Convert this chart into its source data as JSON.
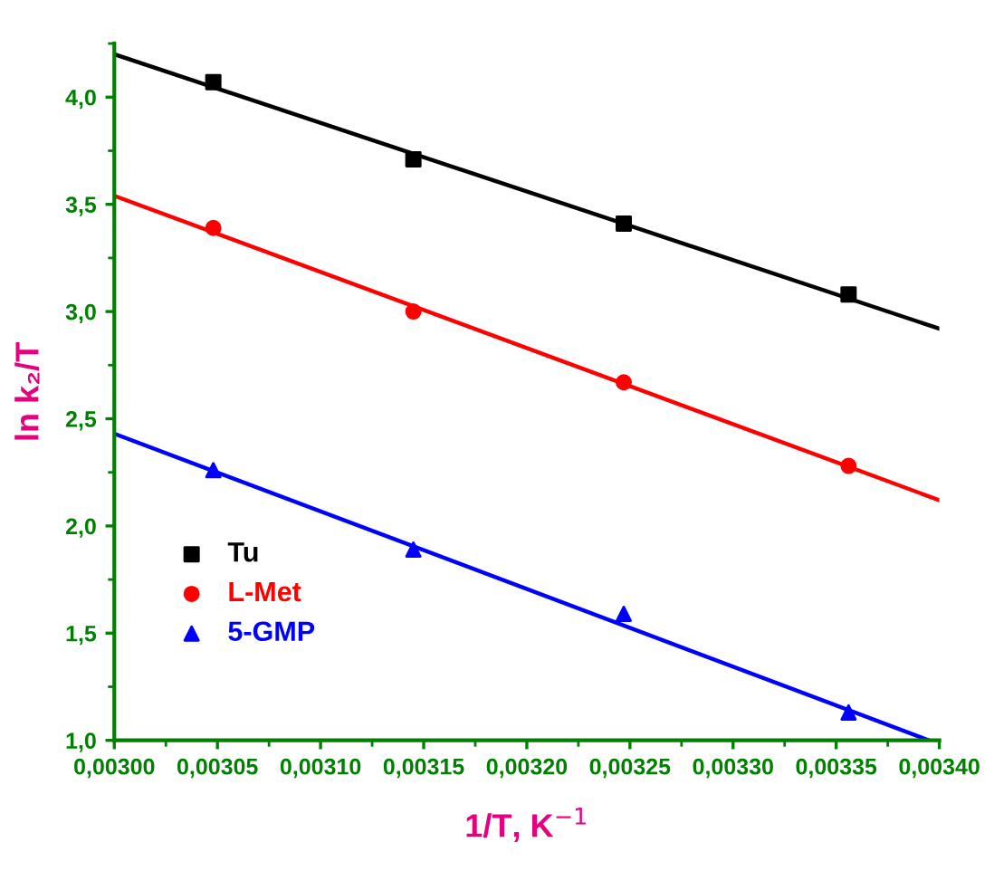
{
  "chart_data": {
    "type": "scatter",
    "xlabel": "1/T, K$^{−1}$",
    "ylabel": "ln k₂/T",
    "xlim": [
      0.003,
      0.0034
    ],
    "ylim": [
      1.0,
      4.25
    ],
    "xticks": [
      {
        "value": 0.003,
        "label": "0,00300"
      },
      {
        "value": 0.00305,
        "label": "0,00305"
      },
      {
        "value": 0.0031,
        "label": "0,00310"
      },
      {
        "value": 0.00315,
        "label": "0,00315"
      },
      {
        "value": 0.0032,
        "label": "0,00320"
      },
      {
        "value": 0.00325,
        "label": "0,00325"
      },
      {
        "value": 0.0033,
        "label": "0,00330"
      },
      {
        "value": 0.00335,
        "label": "0,00335"
      },
      {
        "value": 0.0034,
        "label": "0,00340"
      }
    ],
    "yticks": [
      {
        "value": 1.0,
        "label": "1,0"
      },
      {
        "value": 1.5,
        "label": "1,5"
      },
      {
        "value": 2.0,
        "label": "2,0"
      },
      {
        "value": 2.5,
        "label": "2,5"
      },
      {
        "value": 3.0,
        "label": "3,0"
      },
      {
        "value": 3.5,
        "label": "3,5"
      },
      {
        "value": 4.0,
        "label": "4,0"
      }
    ],
    "grid": false,
    "legend": "left",
    "series": [
      {
        "name": "Tu",
        "color": "#000000",
        "marker": "square",
        "x": [
          0.003048,
          0.003145,
          0.003247,
          0.003356
        ],
        "values": [
          4.07,
          3.71,
          3.41,
          3.08
        ]
      },
      {
        "name": "L-Met",
        "color": "#ff0000",
        "marker": "circle",
        "x": [
          0.003048,
          0.003145,
          0.003247,
          0.003356
        ],
        "values": [
          3.39,
          3.0,
          2.67,
          2.28
        ]
      },
      {
        "name": "5-GMP",
        "color": "#0000ff",
        "marker": "triangle",
        "x": [
          0.003048,
          0.003145,
          0.003247,
          0.003356
        ],
        "values": [
          2.26,
          1.89,
          1.59,
          1.13
        ]
      },
      {
        "type": "line",
        "color": "#000000",
        "x": [
          0.003,
          0.0034
        ],
        "values": [
          4.2,
          2.92
        ]
      },
      {
        "type": "line",
        "color": "#ff0000",
        "x": [
          0.003,
          0.0034
        ],
        "values": [
          3.54,
          2.12
        ]
      },
      {
        "type": "line",
        "color": "#0000ff",
        "x": [
          0.003,
          0.003395
        ],
        "values": [
          2.43,
          1.0
        ]
      }
    ]
  }
}
